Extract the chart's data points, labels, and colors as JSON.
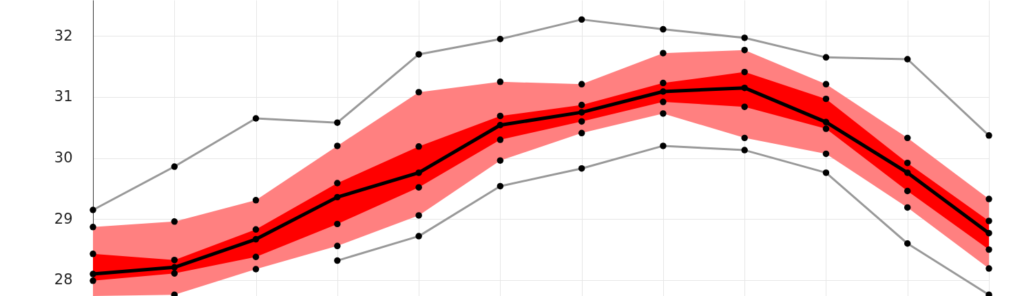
{
  "chart_data": {
    "type": "line",
    "categories": [
      null,
      null,
      null,
      null,
      null,
      null,
      null,
      null,
      null,
      null,
      null,
      null
    ],
    "ylim": [
      27.74,
      32.59
    ],
    "yticks": [
      28,
      29,
      30,
      31,
      32
    ],
    "grid": true,
    "marker": "circle",
    "tick_labels": "y",
    "series": [
      {
        "type": "scatter",
        "color": "#000000",
        "values": [
          28.87,
          28.96,
          29.31,
          30.2,
          31.08,
          31.25,
          31.21,
          31.72,
          31.77,
          31.21,
          30.33,
          29.33
        ],
        "upper": [
          28.87,
          28.96,
          29.31,
          30.2,
          31.08,
          31.25,
          31.21,
          31.72,
          31.77,
          31.21,
          30.33,
          29.33
        ],
        "lower": [
          27.74,
          27.76,
          28.18,
          28.56,
          29.06,
          29.96,
          30.41,
          30.73,
          30.33,
          30.07,
          29.19,
          28.19
        ]
      },
      {
        "type": "scatter",
        "color": "#000000",
        "values": [
          28.43,
          28.33,
          28.83,
          29.59,
          30.19,
          30.69,
          30.87,
          31.23,
          31.41,
          30.97,
          29.92,
          28.97
        ]
      },
      {
        "type": "line",
        "color": "#999999",
        "values": [
          29.15,
          29.86,
          30.65,
          30.58,
          31.7,
          31.95,
          32.27,
          32.11,
          31.97,
          31.65,
          31.62,
          30.37
        ]
      },
      {
        "type": "line",
        "color": "#999999",
        "values": [
          null,
          null,
          null,
          28.32,
          28.72,
          29.54,
          29.83,
          30.2,
          30.13,
          29.76,
          28.6,
          27.76
        ]
      },
      {
        "type": "scatter",
        "color": "#000000",
        "values": [
          null,
          27.76,
          28.18,
          28.56,
          29.06,
          29.96,
          30.41,
          30.73,
          30.33,
          30.07,
          29.19,
          28.19
        ]
      },
      {
        "type": "scatter",
        "color": "#000000",
        "values": [
          27.99,
          28.11,
          28.38,
          28.92,
          29.52,
          30.3,
          30.6,
          30.92,
          30.84,
          30.48,
          29.46,
          28.5
        ]
      },
      {
        "color": "#000000",
        "values": [
          28.1,
          28.21,
          28.67,
          29.36,
          29.76,
          30.54,
          30.75,
          31.09,
          31.15,
          30.59,
          29.76,
          28.77
        ],
        "lower": [
          27.99,
          28.11,
          28.38,
          28.92,
          29.52,
          30.3,
          30.6,
          30.92,
          30.84,
          30.48,
          29.46,
          28.5
        ],
        "upper": [
          28.43,
          28.33,
          28.83,
          29.59,
          30.19,
          30.69,
          30.87,
          31.23,
          31.41,
          30.97,
          29.92,
          28.97
        ]
      }
    ]
  }
}
